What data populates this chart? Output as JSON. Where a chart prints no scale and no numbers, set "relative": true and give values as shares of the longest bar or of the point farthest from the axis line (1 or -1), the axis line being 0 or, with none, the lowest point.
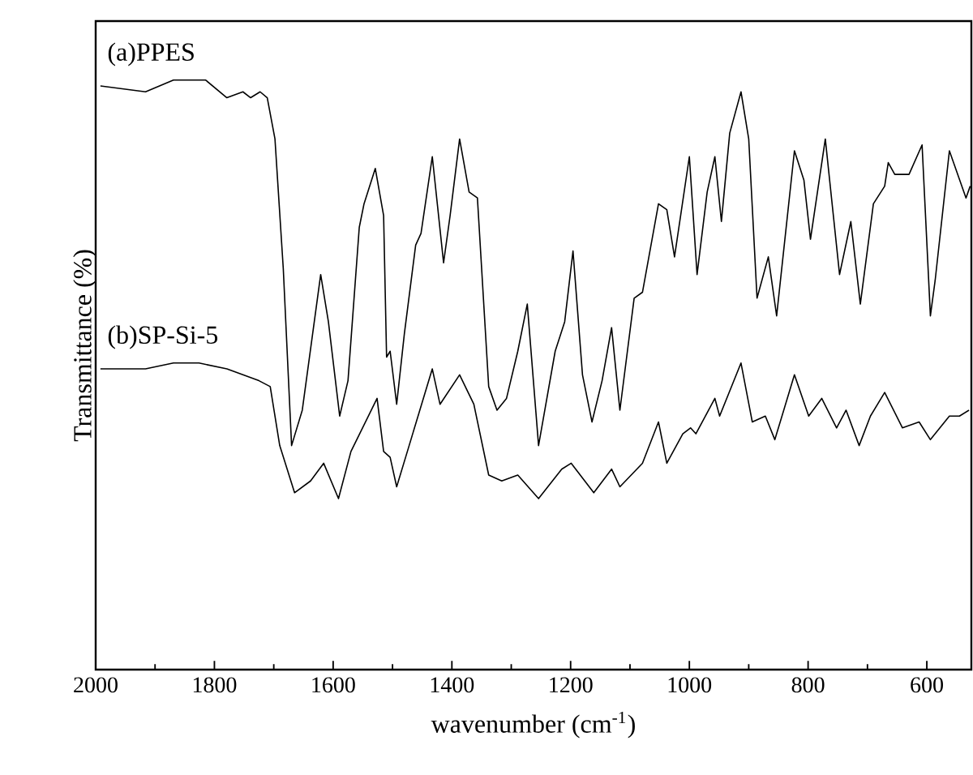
{
  "chart_data": {
    "type": "line",
    "relative": true,
    "xlabel": "wavenumber (cm$^{-1}$)",
    "ylabel": "Transmittance (%)",
    "xlim": [
      2000,
      525
    ],
    "xticks": [
      2000,
      1800,
      1600,
      1400,
      1200,
      1000,
      800,
      600
    ],
    "legend": false,
    "grid": false,
    "marker": "none",
    "line_style": "solid",
    "series": [
      {
        "name": "(a)PPES",
        "color": "#000000",
        "x": [
          1992,
          1916,
          1869,
          1815,
          1779,
          1752,
          1739,
          1723,
          1711,
          1698,
          1684,
          1670,
          1652,
          1621,
          1608,
          1589,
          1575,
          1556,
          1548,
          1529,
          1515,
          1510,
          1504,
          1493,
          1480,
          1461,
          1452,
          1433,
          1414,
          1403,
          1387,
          1371,
          1357,
          1338,
          1324,
          1308,
          1289,
          1273,
          1254,
          1226,
          1210,
          1196,
          1180,
          1164,
          1147,
          1131,
          1117,
          1093,
          1079,
          1052,
          1038,
          1025,
          1000,
          987,
          970,
          957,
          946,
          932,
          913,
          900,
          886,
          867,
          853,
          823,
          807,
          796,
          771,
          747,
          728,
          712,
          690,
          671,
          665,
          654,
          630,
          608,
          594,
          586,
          562,
          534,
          527
        ],
        "values": [
          0.99,
          0.98,
          1.0,
          1.0,
          0.97,
          0.98,
          0.97,
          0.98,
          0.97,
          0.9,
          0.68,
          0.38,
          0.44,
          0.67,
          0.59,
          0.43,
          0.49,
          0.75,
          0.79,
          0.85,
          0.77,
          0.53,
          0.54,
          0.45,
          0.57,
          0.72,
          0.74,
          0.87,
          0.69,
          0.77,
          0.9,
          0.81,
          0.8,
          0.48,
          0.44,
          0.46,
          0.54,
          0.62,
          0.38,
          0.54,
          0.59,
          0.71,
          0.5,
          0.42,
          0.49,
          0.58,
          0.44,
          0.63,
          0.64,
          0.79,
          0.78,
          0.7,
          0.87,
          0.67,
          0.81,
          0.87,
          0.76,
          0.91,
          0.98,
          0.9,
          0.63,
          0.7,
          0.6,
          0.88,
          0.83,
          0.73,
          0.9,
          0.67,
          0.76,
          0.62,
          0.79,
          0.82,
          0.86,
          0.84,
          0.84,
          0.89,
          0.6,
          0.66,
          0.88,
          0.8,
          0.82
        ]
      },
      {
        "name": "(b)SP-Si-5",
        "color": "#000000",
        "x": [
          1992,
          1916,
          1869,
          1826,
          1779,
          1725,
          1706,
          1690,
          1665,
          1638,
          1616,
          1591,
          1570,
          1526,
          1515,
          1504,
          1493,
          1472,
          1433,
          1420,
          1387,
          1363,
          1338,
          1316,
          1289,
          1254,
          1215,
          1199,
          1161,
          1131,
          1117,
          1079,
          1052,
          1038,
          1011,
          998,
          989,
          957,
          949,
          913,
          894,
          872,
          856,
          823,
          799,
          777,
          752,
          736,
          714,
          695,
          671,
          641,
          613,
          594,
          562,
          545,
          529
        ],
        "values": [
          0.51,
          0.51,
          0.52,
          0.52,
          0.51,
          0.49,
          0.48,
          0.38,
          0.3,
          0.32,
          0.35,
          0.29,
          0.37,
          0.46,
          0.37,
          0.36,
          0.31,
          0.38,
          0.51,
          0.45,
          0.5,
          0.45,
          0.33,
          0.32,
          0.33,
          0.29,
          0.34,
          0.35,
          0.3,
          0.34,
          0.31,
          0.35,
          0.42,
          0.35,
          0.4,
          0.41,
          0.4,
          0.46,
          0.43,
          0.52,
          0.42,
          0.43,
          0.39,
          0.5,
          0.43,
          0.46,
          0.41,
          0.44,
          0.38,
          0.43,
          0.47,
          0.41,
          0.42,
          0.39,
          0.43,
          0.43,
          0.44
        ]
      }
    ]
  }
}
